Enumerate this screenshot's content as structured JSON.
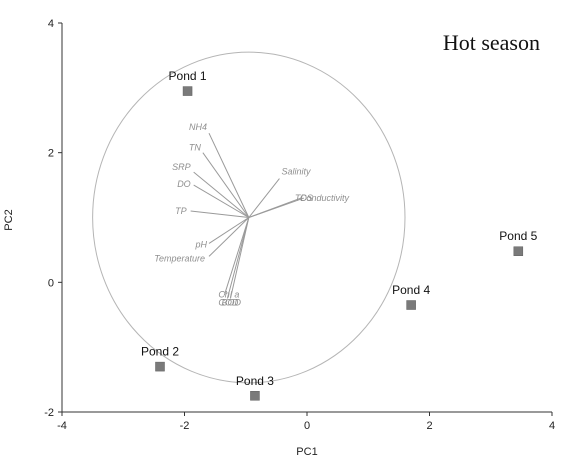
{
  "chart_data": {
    "type": "scatter",
    "title": "Hot season",
    "xlabel": "PC1",
    "ylabel": "PC2",
    "xlim": [
      -4,
      4
    ],
    "ylim": [
      -2,
      4
    ],
    "x_ticks": [
      "-4",
      "-2",
      "0",
      "2",
      "4"
    ],
    "y_ticks": [
      "-2",
      "0",
      "2",
      "4"
    ],
    "grid": false,
    "series": [
      {
        "points": [
          {
            "label": "Pond 1",
            "x": -1.95,
            "y": 2.95
          },
          {
            "label": "Pond 2",
            "x": -2.4,
            "y": -1.3
          },
          {
            "label": "Pond 3",
            "x": -0.85,
            "y": -1.75
          },
          {
            "label": "Pond 4",
            "x": 1.7,
            "y": -0.35
          },
          {
            "label": "Pond 5",
            "x": 3.45,
            "y": 0.48
          }
        ]
      }
    ],
    "correlation_circle": {
      "center": [
        -0.95,
        1.0
      ],
      "radius": 2.55
    },
    "vectors": [
      {
        "label": "NH4",
        "x": -1.6,
        "y": 2.3
      },
      {
        "label": "TN",
        "x": -1.7,
        "y": 2.0
      },
      {
        "label": "SRP",
        "x": -1.85,
        "y": 1.7
      },
      {
        "label": "DO",
        "x": -1.85,
        "y": 1.5
      },
      {
        "label": "TP",
        "x": -1.9,
        "y": 1.1
      },
      {
        "label": "pH",
        "x": -1.6,
        "y": 0.6
      },
      {
        "label": "Temperature",
        "x": -1.6,
        "y": 0.4
      },
      {
        "label": "Salinity",
        "x": -0.45,
        "y": 1.6
      },
      {
        "label": "TDS",
        "x": -0.1,
        "y": 1.3
      },
      {
        "label": "Conductivity",
        "x": -0.05,
        "y": 1.3
      },
      {
        "label": "Chl a",
        "x": -1.35,
        "y": -0.2
      },
      {
        "label": "COD",
        "x": -1.3,
        "y": -0.25
      },
      {
        "label": "BOD",
        "x": -1.25,
        "y": -0.25
      }
    ]
  }
}
